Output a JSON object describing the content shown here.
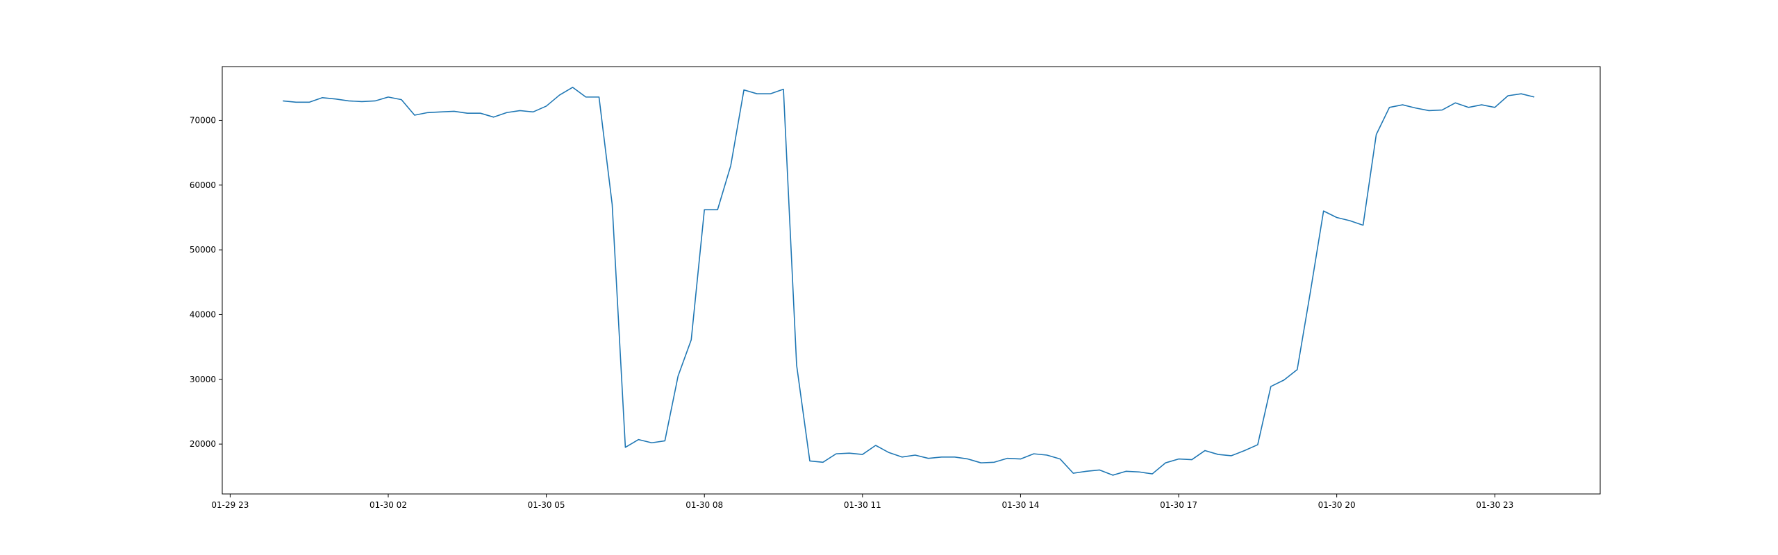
{
  "chart_data": {
    "type": "line",
    "title": "",
    "xlabel": "",
    "ylabel": "",
    "grid": false,
    "x_ticks": [
      "01-29 23",
      "01-30 02",
      "01-30 05",
      "01-30 08",
      "01-30 11",
      "01-30 14",
      "01-30 17",
      "01-30 20",
      "01-30 23"
    ],
    "x_tick_hours": [
      23,
      26,
      29,
      32,
      35,
      38,
      41,
      44,
      47
    ],
    "xlim_hours": [
      22.85,
      49.0
    ],
    "y_ticks": [
      20000,
      30000,
      40000,
      50000,
      60000,
      70000
    ],
    "y_tick_labels": [
      "20000",
      "30000",
      "40000",
      "50000",
      "60000",
      "70000"
    ],
    "ylim": [
      12300,
      78300
    ],
    "colors": {
      "line": "#1f77b4",
      "axes": "#000000",
      "background": "#ffffff"
    },
    "series": [
      {
        "x_hours_since_01-29_00": [
          24.0,
          24.25,
          24.5,
          24.75,
          25.0,
          25.25,
          25.5,
          25.75,
          26.0,
          26.25,
          26.5,
          26.75,
          27.0,
          27.25,
          27.5,
          27.75,
          28.0,
          28.25,
          28.5,
          28.75,
          29.0,
          29.25,
          29.5,
          29.75,
          30.0,
          30.25,
          30.5,
          30.75,
          31.0,
          31.25,
          31.5,
          31.75,
          32.0,
          32.25,
          32.5,
          32.75,
          33.0,
          33.25,
          33.5,
          33.75,
          34.0,
          34.25,
          34.5,
          34.75,
          35.0,
          35.25,
          35.5,
          35.75,
          36.0,
          36.25,
          36.5,
          36.75,
          37.0,
          37.25,
          37.5,
          37.75,
          38.0,
          38.25,
          38.5,
          38.75,
          39.0,
          39.25,
          39.5,
          39.75,
          40.0,
          40.25,
          40.5,
          40.75,
          41.0,
          41.25,
          41.5,
          41.75,
          42.0,
          42.25,
          42.5,
          42.75,
          43.0,
          43.25,
          43.5,
          43.75,
          44.0,
          44.25,
          44.5,
          44.75,
          45.0,
          45.25,
          45.5,
          45.75,
          46.0,
          46.25,
          46.5,
          46.75,
          47.0,
          47.25,
          47.5,
          47.75
        ],
        "values": [
          73000,
          72800,
          72800,
          73500,
          73300,
          73000,
          72900,
          73000,
          73600,
          73200,
          70800,
          71200,
          71300,
          71400,
          71100,
          71100,
          70500,
          71200,
          71500,
          71300,
          72200,
          73900,
          75100,
          73600,
          73600,
          57000,
          19500,
          20700,
          20200,
          20500,
          30500,
          36100,
          56200,
          56200,
          63000,
          74700,
          74100,
          74100,
          74800,
          32200,
          17400,
          17200,
          18500,
          18600,
          18400,
          19800,
          18700,
          18000,
          18300,
          17800,
          18000,
          18000,
          17700,
          17100,
          17200,
          17800,
          17700,
          18500,
          18300,
          17700,
          15500,
          15800,
          16000,
          15200,
          15800,
          15700,
          15400,
          17100,
          17700,
          17600,
          19000,
          18400,
          18200,
          19000,
          19900,
          28900,
          29900,
          31500,
          43500,
          56000,
          55000,
          54500,
          53800,
          67800,
          72000,
          72400,
          71900,
          71500,
          71600,
          72700,
          72000,
          72400,
          72000,
          73800,
          74100,
          73600
        ]
      }
    ]
  }
}
